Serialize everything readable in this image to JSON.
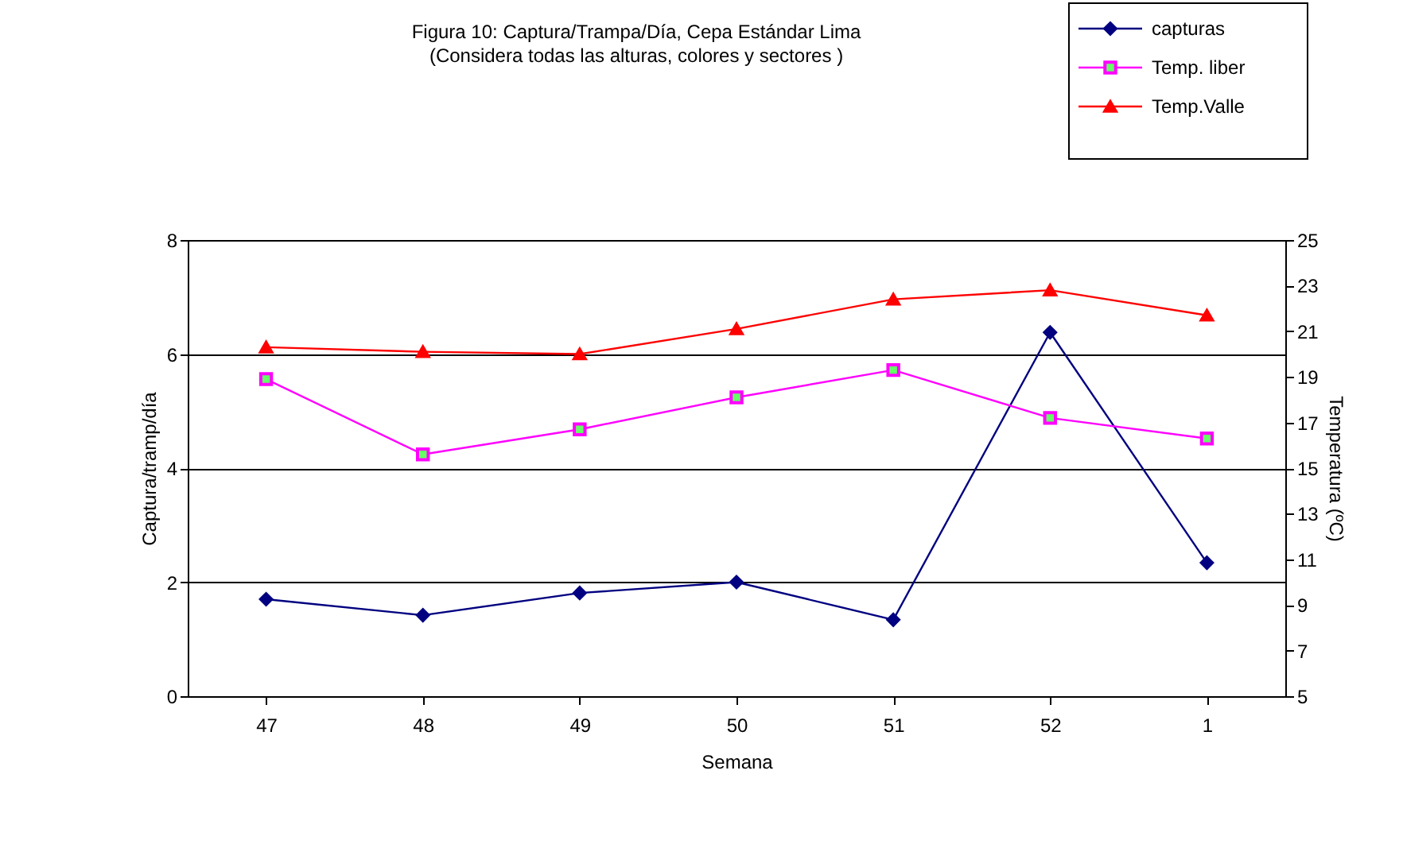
{
  "chart_data": {
    "type": "line",
    "title": "Figura 10: Captura/Trampa/Día, Cepa Estándar Lima\n(Considera todas las alturas, colores  y sectores )",
    "xlabel": "Semana",
    "ylabel": "Captura/tramp/día",
    "y2label": "Temperatura (ºC)",
    "categories": [
      "47",
      "48",
      "49",
      "50",
      "51",
      "52",
      "1"
    ],
    "series": [
      {
        "name": "capturas",
        "color": "#000080",
        "marker": "diamond",
        "values": [
          1.7,
          1.42,
          1.81,
          2.0,
          1.34,
          6.38,
          2.34
        ]
      },
      {
        "name": "Temp. liber",
        "color": "#ff00ff",
        "colors": [
          "#66ff66",
          "#66ff66",
          "#66ff66",
          "#66ff66",
          "#66ff66",
          "#66ff66",
          "#66ff66"
        ],
        "marker": "square",
        "axis": "y2",
        "values": [
          18.9,
          15.6,
          16.7,
          18.1,
          19.3,
          17.2,
          16.3
        ]
      },
      {
        "name": "Temp.Valle",
        "color": "#ff0000",
        "marker": "triangle",
        "axis": "y2",
        "values": [
          20.3,
          20.1,
          20.0,
          21.1,
          22.4,
          22.8,
          21.7
        ]
      }
    ],
    "ylim": [
      0,
      8
    ],
    "yticks": [
      0,
      2,
      4,
      6,
      8
    ],
    "y2lim": [
      5,
      25
    ],
    "y2ticks": [
      5,
      7,
      9,
      11,
      13,
      15,
      17,
      19,
      21,
      23,
      25
    ],
    "grid": "y",
    "legend": "top right"
  }
}
